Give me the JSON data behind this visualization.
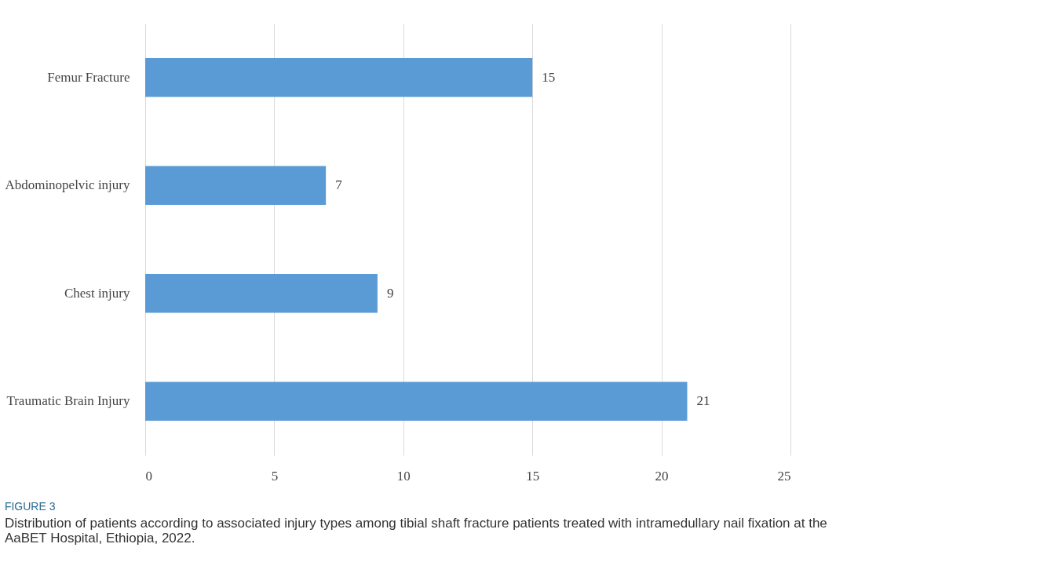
{
  "chart_data": {
    "type": "bar",
    "orientation": "horizontal",
    "categories": [
      "Femur Fracture",
      "Abdominopelvic injury",
      "Chest injury",
      "Traumatic Brain Injury"
    ],
    "values": [
      15,
      7,
      9,
      21
    ],
    "color": "#5b9bd5",
    "xlim": [
      0,
      25
    ],
    "xticks": [
      0,
      5,
      10,
      15,
      20,
      25
    ],
    "grid": "x",
    "data_labels": true,
    "annotations": [
      "FIGURE 3",
      "Distribution of patients according to associated injury types among tibial shaft fracture patients treated with intramedullary nail fixation at the AaBET Hospital, Ethiopia, 2022."
    ]
  }
}
